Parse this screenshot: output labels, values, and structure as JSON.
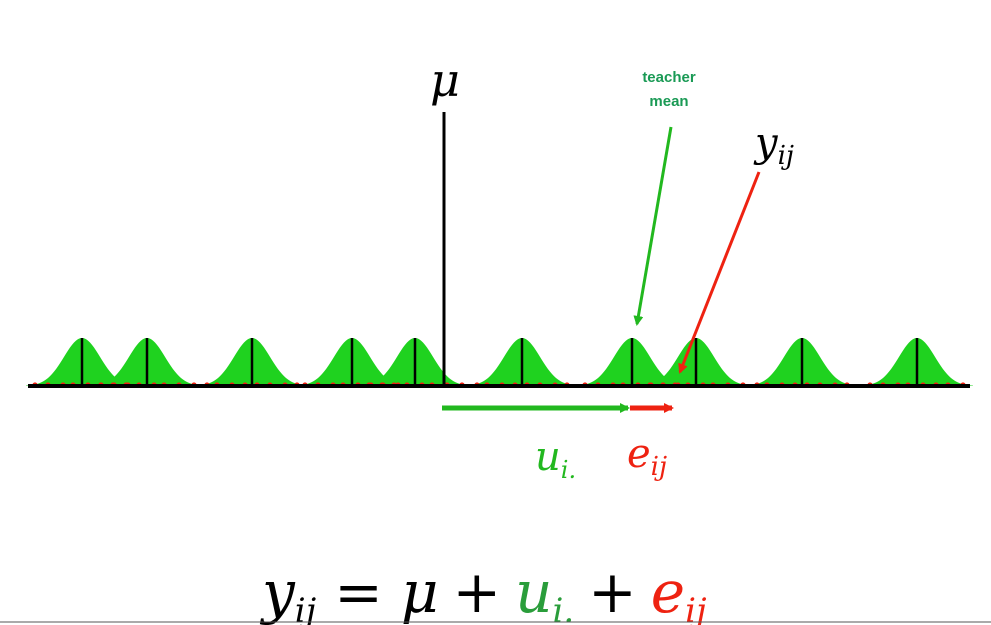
{
  "colors": {
    "green": "#22b81f",
    "green_fill": "#1fd21f",
    "green_text": "#2a9d3b",
    "red": "#ee2211",
    "black": "#000000",
    "teal_label": "#1a9a55"
  },
  "labels": {
    "mu": "μ",
    "teacher_mean_line1": "teacher",
    "teacher_mean_line2": "mean",
    "y_ij_base": "y",
    "y_ij_sub": "ij",
    "u_base": "u",
    "u_sub": "i.",
    "e_base": "e",
    "e_sub": "ij"
  },
  "equation": {
    "y_base": "y",
    "y_sub": "ij",
    "equals": "=",
    "mu": "μ",
    "plus1": "+",
    "u_base": "u",
    "u_sub": "i.",
    "plus2": "+",
    "e_base": "e",
    "e_sub": "ij"
  },
  "teacher_means": [
    82,
    147,
    252,
    352,
    415,
    522,
    632,
    696,
    802,
    917
  ]
}
